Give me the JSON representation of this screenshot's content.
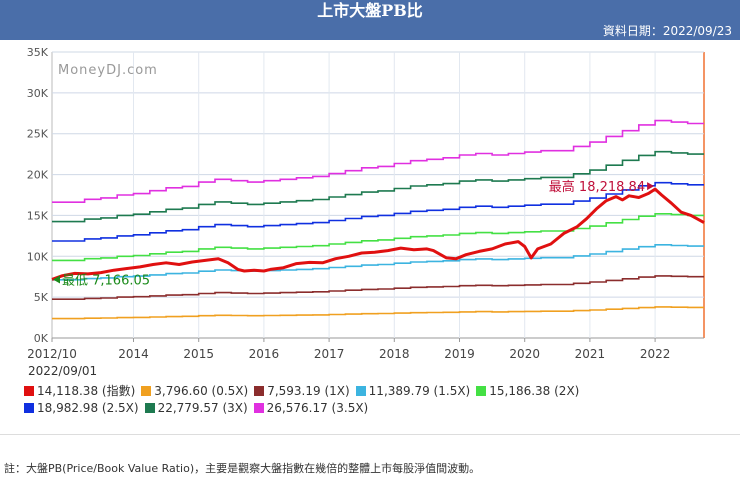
{
  "header": {
    "title": "上市大盤PB比",
    "date_label": "資料日期：2022/09/23"
  },
  "watermark": "MoneyDJ.com",
  "legend": {
    "date": "2022/09/01",
    "items": [
      {
        "label": "14,118.38 (指數)",
        "color": "#e01010"
      },
      {
        "label": "3,796.60 (0.5X)",
        "color": "#f0a020"
      },
      {
        "label": "7,593.19 (1X)",
        "color": "#8b2d2d"
      },
      {
        "label": "11,389.79 (1.5X)",
        "color": "#3cb4e0"
      },
      {
        "label": "15,186.38 (2X)",
        "color": "#44e044"
      },
      {
        "label": "18,982.98 (2.5X)",
        "color": "#1030e0"
      },
      {
        "label": "22,779.57 (3X)",
        "color": "#1e7a50"
      },
      {
        "label": "26,576.17 (3.5X)",
        "color": "#e030e0"
      }
    ]
  },
  "note": "註：大盤PB(Price/Book Value Ratio)，主要是觀察大盤指數在幾倍的整體上市每股淨值間波動。",
  "chart_data": {
    "type": "line",
    "xlim": [
      2012.75,
      2022.75
    ],
    "ylim": [
      0,
      35000
    ],
    "ylabel": "",
    "xlabel": "",
    "x_ticks": [
      2012.75,
      2014,
      2015,
      2016,
      2017,
      2018,
      2019,
      2020,
      2021,
      2022
    ],
    "x_tick_labels": [
      "2012/10",
      "2014",
      "2015",
      "2016",
      "2017",
      "2018",
      "2019",
      "2020",
      "2021",
      "2022"
    ],
    "y_ticks": [
      0,
      5000,
      10000,
      15000,
      20000,
      25000,
      30000,
      35000
    ],
    "y_tick_labels": [
      "0K",
      "5K",
      "10K",
      "15K",
      "20K",
      "25K",
      "30K",
      "35K"
    ],
    "annotations": [
      {
        "text": "最高 18,218.84",
        "x": 2022.0,
        "y": 18218.84,
        "color": "#c0103a"
      },
      {
        "text": "最低 7,166.05",
        "x": 2012.75,
        "y": 7166.05,
        "color": "#1a8a1a"
      }
    ],
    "bvps_x": [
      2012.75,
      2013.0,
      2013.25,
      2013.5,
      2013.75,
      2014.0,
      2014.25,
      2014.5,
      2014.75,
      2015.0,
      2015.25,
      2015.5,
      2015.75,
      2016.0,
      2016.25,
      2016.5,
      2016.75,
      2017.0,
      2017.25,
      2017.5,
      2017.75,
      2018.0,
      2018.25,
      2018.5,
      2018.75,
      2019.0,
      2019.25,
      2019.5,
      2019.75,
      2020.0,
      2020.25,
      2020.5,
      2020.75,
      2021.0,
      2021.25,
      2021.5,
      2021.75,
      2022.0,
      2022.25,
      2022.5,
      2022.75
    ],
    "bvps_1x": [
      4750,
      4750,
      4850,
      4900,
      5000,
      5050,
      5150,
      5250,
      5300,
      5450,
      5550,
      5500,
      5450,
      5500,
      5550,
      5600,
      5650,
      5750,
      5850,
      5950,
      6000,
      6100,
      6200,
      6250,
      6300,
      6400,
      6450,
      6400,
      6450,
      6500,
      6550,
      6550,
      6700,
      6850,
      7050,
      7250,
      7450,
      7600,
      7550,
      7500,
      7500
    ],
    "series": [
      {
        "name": "3.5X",
        "color": "#e030e0",
        "multiplier": 3.5
      },
      {
        "name": "3X",
        "color": "#1e7a50",
        "multiplier": 3.0
      },
      {
        "name": "2.5X",
        "color": "#1030e0",
        "multiplier": 2.5
      },
      {
        "name": "2X",
        "color": "#44e044",
        "multiplier": 2.0
      },
      {
        "name": "1.5X",
        "color": "#3cb4e0",
        "multiplier": 1.5
      },
      {
        "name": "1X",
        "color": "#8b2d2d",
        "multiplier": 1.0
      },
      {
        "name": "0.5X",
        "color": "#f0a020",
        "multiplier": 0.5
      }
    ],
    "index_series": {
      "name": "指數",
      "color": "#e01010",
      "x": [
        2012.75,
        2012.9,
        2013.1,
        2013.3,
        2013.5,
        2013.7,
        2013.9,
        2014.1,
        2014.3,
        2014.5,
        2014.7,
        2014.9,
        2015.1,
        2015.3,
        2015.45,
        2015.6,
        2015.7,
        2015.85,
        2016.0,
        2016.1,
        2016.3,
        2016.5,
        2016.7,
        2016.9,
        2017.1,
        2017.3,
        2017.5,
        2017.7,
        2017.9,
        2018.1,
        2018.3,
        2018.5,
        2018.6,
        2018.8,
        2018.95,
        2019.1,
        2019.3,
        2019.5,
        2019.7,
        2019.9,
        2020.0,
        2020.1,
        2020.2,
        2020.4,
        2020.6,
        2020.8,
        2020.95,
        2021.1,
        2021.25,
        2021.4,
        2021.5,
        2021.6,
        2021.75,
        2021.9,
        2022.0,
        2022.1,
        2022.25,
        2022.4,
        2022.55,
        2022.75
      ],
      "values": [
        7166,
        7600,
        7900,
        7850,
        8000,
        8300,
        8500,
        8700,
        9000,
        9200,
        9000,
        9300,
        9500,
        9700,
        9200,
        8400,
        8200,
        8300,
        8200,
        8400,
        8600,
        9100,
        9250,
        9200,
        9700,
        10000,
        10400,
        10500,
        10700,
        11000,
        10800,
        10900,
        10700,
        9800,
        9700,
        10200,
        10600,
        10900,
        11500,
        11800,
        11200,
        9800,
        10900,
        11500,
        12800,
        13600,
        14600,
        15800,
        16800,
        17300,
        16900,
        17400,
        17200,
        17700,
        18218,
        17500,
        16500,
        15400,
        15000,
        14118
      ]
    }
  }
}
